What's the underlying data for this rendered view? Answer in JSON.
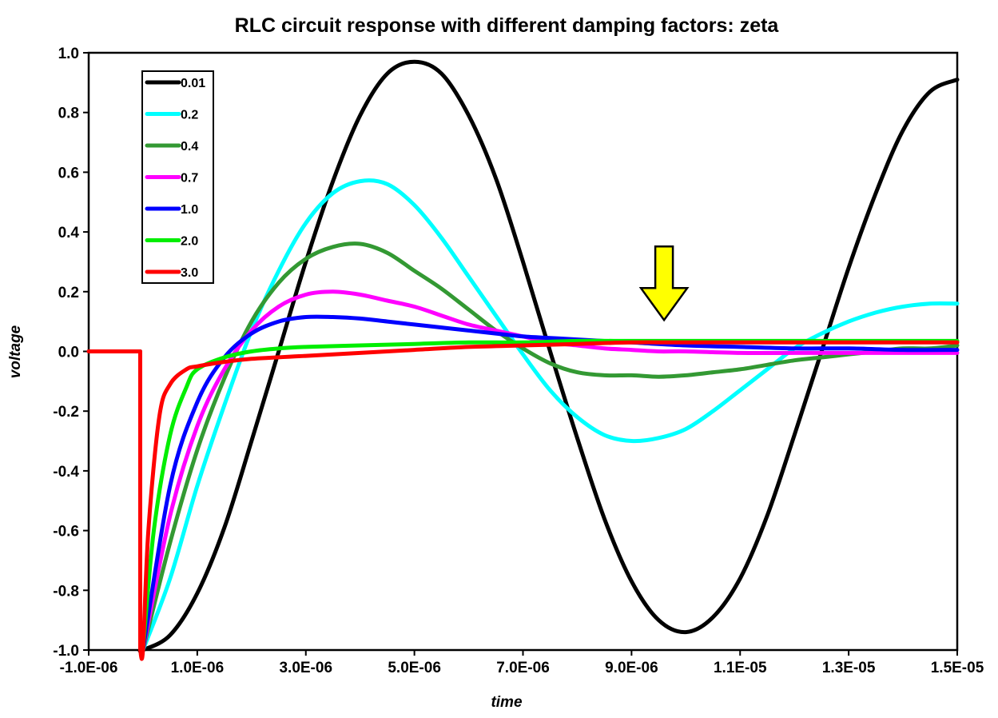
{
  "chart_data": {
    "type": "line",
    "title": "RLC circuit response with different damping factors: zeta",
    "xlabel": "time",
    "ylabel": "voltage",
    "xlim": [
      -1e-06,
      1.5e-05
    ],
    "ylim": [
      -1.0,
      1.0
    ],
    "x_tick_labels": [
      "-1.0E-06",
      "1.0E-06",
      "3.0E-06",
      "5.0E-06",
      "7.0E-06",
      "9.0E-06",
      "1.1E-05",
      "1.3E-05",
      "1.5E-05"
    ],
    "y_tick_labels": [
      "1.0",
      "0.8",
      "0.6",
      "0.4",
      "0.2",
      "0.0",
      "-0.2",
      "-0.4",
      "-0.6",
      "-0.8",
      "-1.0"
    ],
    "grid": false,
    "legend_position": "top-left",
    "annotation": {
      "type": "arrow",
      "color": "#ffff00",
      "direction": "down",
      "x": 9.6e-06,
      "y": 0.03
    },
    "series": [
      {
        "name": "0.01",
        "color": "#000000",
        "x": [
          -1e-06,
          -5e-08,
          -5e-08,
          0,
          5e-07,
          1e-06,
          1.5e-06,
          2e-06,
          2.5e-06,
          3e-06,
          3.5e-06,
          4e-06,
          4.5e-06,
          5e-06,
          5.5e-06,
          6e-06,
          6.5e-06,
          7e-06,
          7.5e-06,
          8e-06,
          8.5e-06,
          9e-06,
          9.5e-06,
          1e-05,
          1.05e-05,
          1.1e-05,
          1.15e-05,
          1.2e-05,
          1.25e-05,
          1.3e-05,
          1.35e-05,
          1.4e-05,
          1.45e-05,
          1.5e-05
        ],
        "y": [
          0.0,
          0.0,
          -1.0,
          -1.0,
          -0.95,
          -0.81,
          -0.59,
          -0.3,
          0.0,
          0.3,
          0.57,
          0.79,
          0.93,
          0.97,
          0.93,
          0.79,
          0.58,
          0.3,
          0.0,
          -0.29,
          -0.56,
          -0.77,
          -0.9,
          -0.94,
          -0.89,
          -0.76,
          -0.55,
          -0.28,
          0.0,
          0.28,
          0.53,
          0.74,
          0.87,
          0.91
        ]
      },
      {
        "name": "0.2",
        "color": "#00ffff",
        "x": [
          0,
          5e-07,
          1e-06,
          1.5e-06,
          2e-06,
          2.5e-06,
          3e-06,
          3.5e-06,
          4e-06,
          4.5e-06,
          5e-06,
          5.5e-06,
          6e-06,
          6.5e-06,
          7e-06,
          7.5e-06,
          8e-06,
          8.5e-06,
          9e-06,
          9.5e-06,
          1e-05,
          1.05e-05,
          1.1e-05,
          1.15e-05,
          1.2e-05,
          1.25e-05,
          1.3e-05,
          1.35e-05,
          1.4e-05,
          1.45e-05,
          1.5e-05
        ],
        "y": [
          -1.0,
          -0.76,
          -0.45,
          -0.18,
          0.07,
          0.27,
          0.43,
          0.53,
          0.57,
          0.56,
          0.49,
          0.38,
          0.25,
          0.12,
          -0.01,
          -0.13,
          -0.22,
          -0.28,
          -0.3,
          -0.29,
          -0.26,
          -0.2,
          -0.13,
          -0.06,
          0.01,
          0.06,
          0.1,
          0.13,
          0.15,
          0.16,
          0.16
        ]
      },
      {
        "name": "0.4",
        "color": "#339933",
        "x": [
          0,
          5e-07,
          1e-06,
          1.5e-06,
          2e-06,
          2.5e-06,
          3e-06,
          3.5e-06,
          4e-06,
          4.5e-06,
          5e-06,
          5.5e-06,
          6e-06,
          6.5e-06,
          7e-06,
          7.5e-06,
          8e-06,
          8.5e-06,
          9e-06,
          9.5e-06,
          1e-05,
          1.05e-05,
          1.1e-05,
          1.15e-05,
          1.2e-05,
          1.25e-05,
          1.3e-05,
          1.35e-05,
          1.4e-05,
          1.45e-05,
          1.5e-05
        ],
        "y": [
          -1.0,
          -0.64,
          -0.33,
          -0.09,
          0.1,
          0.23,
          0.31,
          0.35,
          0.36,
          0.33,
          0.27,
          0.21,
          0.14,
          0.07,
          0.01,
          -0.04,
          -0.07,
          -0.08,
          -0.08,
          -0.085,
          -0.08,
          -0.07,
          -0.06,
          -0.045,
          -0.03,
          -0.02,
          -0.01,
          0.0,
          0.01,
          0.01,
          0.02
        ]
      },
      {
        "name": "0.7",
        "color": "#ff00ff",
        "x": [
          0,
          5e-07,
          1e-06,
          1.5e-06,
          2e-06,
          2.5e-06,
          3e-06,
          3.5e-06,
          4e-06,
          4.5e-06,
          5e-06,
          5.5e-06,
          6e-06,
          6.5e-06,
          7e-06,
          7.5e-06,
          8e-06,
          8.5e-06,
          9e-06,
          9.5e-06,
          1e-05,
          1.1e-05,
          1.2e-05,
          1.3e-05,
          1.4e-05,
          1.5e-05
        ],
        "y": [
          -1.0,
          -0.55,
          -0.25,
          -0.06,
          0.07,
          0.15,
          0.19,
          0.2,
          0.19,
          0.17,
          0.15,
          0.12,
          0.09,
          0.07,
          0.05,
          0.03,
          0.02,
          0.01,
          0.005,
          0.0,
          0.0,
          -0.005,
          -0.005,
          -0.005,
          -0.005,
          -0.005
        ]
      },
      {
        "name": "1.0",
        "color": "#0000ff",
        "x": [
          0,
          5e-07,
          1e-06,
          1.5e-06,
          2e-06,
          2.5e-06,
          3e-06,
          3.5e-06,
          4e-06,
          4.5e-06,
          5e-06,
          5.5e-06,
          6e-06,
          6.5e-06,
          7e-06,
          7.5e-06,
          8e-06,
          9e-06,
          1e-05,
          1.1e-05,
          1.2e-05,
          1.3e-05,
          1.4e-05,
          1.5e-05
        ],
        "y": [
          -1.0,
          -0.45,
          -0.17,
          -0.02,
          0.06,
          0.1,
          0.115,
          0.115,
          0.11,
          0.1,
          0.09,
          0.08,
          0.07,
          0.06,
          0.05,
          0.045,
          0.04,
          0.03,
          0.02,
          0.015,
          0.01,
          0.01,
          0.005,
          0.005
        ]
      },
      {
        "name": "2.0",
        "color": "#00ee00",
        "x": [
          0,
          2e-07,
          5e-07,
          8e-07,
          1e-06,
          1.5e-06,
          2e-06,
          2.5e-06,
          3e-06,
          4e-06,
          5e-06,
          6e-06,
          7e-06,
          8e-06,
          9e-06,
          1e-05,
          1.2e-05,
          1.5e-05
        ],
        "y": [
          -1.0,
          -0.6,
          -0.28,
          -0.12,
          -0.06,
          -0.02,
          0.0,
          0.01,
          0.015,
          0.02,
          0.025,
          0.03,
          0.03,
          0.035,
          0.035,
          0.035,
          0.035,
          0.035
        ]
      },
      {
        "name": "3.0",
        "color": "#ff0000",
        "x": [
          -1e-06,
          -5e-08,
          -5e-08,
          0,
          1e-07,
          3e-07,
          5e-07,
          8e-07,
          1e-06,
          1.5e-06,
          2e-06,
          3e-06,
          4e-06,
          5e-06,
          6e-06,
          7e-06,
          8e-06,
          9e-06,
          1e-05,
          1.2e-05,
          1.5e-05
        ],
        "y": [
          0.0,
          0.0,
          -1.0,
          -1.0,
          -0.6,
          -0.22,
          -0.11,
          -0.06,
          -0.05,
          -0.035,
          -0.025,
          -0.015,
          -0.005,
          0.005,
          0.015,
          0.02,
          0.025,
          0.03,
          0.03,
          0.03,
          0.03
        ]
      }
    ]
  }
}
